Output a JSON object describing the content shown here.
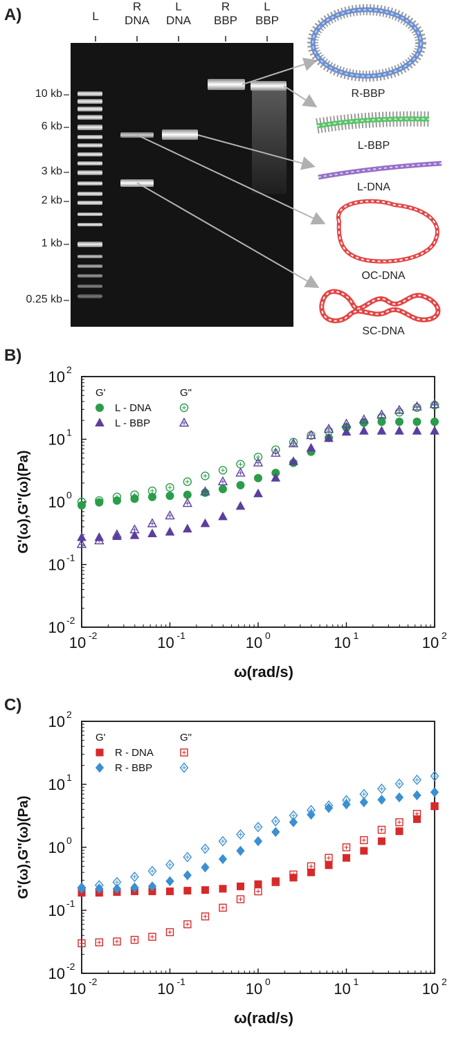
{
  "panels": {
    "a": "A)",
    "b": "B)",
    "c": "C)"
  },
  "gel": {
    "lanes": [
      {
        "top": "",
        "bottom": "L"
      },
      {
        "top": "R",
        "bottom": "DNA"
      },
      {
        "top": "L",
        "bottom": "DNA"
      },
      {
        "top": "R",
        "bottom": "BBP"
      },
      {
        "top": "L",
        "bottom": "BBP"
      }
    ],
    "size_markers": [
      "10 kb",
      "6 kb",
      "3 kb",
      "2 kb",
      "1 kb",
      "0.25 kb"
    ],
    "structures": [
      "R-BBP",
      "L-BBP",
      "L-DNA",
      "OC-DNA",
      "SC-DNA"
    ]
  },
  "chart_data": [
    {
      "type": "scatter",
      "xlabel": "ω(rad/s)",
      "ylabel": "G'(ω),G''(ω)(Pa)",
      "xscale": "log",
      "yscale": "log",
      "xlim": [
        0.01,
        100
      ],
      "ylim": [
        0.01,
        100
      ],
      "xticks": [
        "10",
        "10",
        "10",
        "10",
        "10"
      ],
      "xtick_exps": [
        "-2",
        "-1",
        "0",
        "1",
        "2"
      ],
      "yticks": [
        "10",
        "10",
        "10",
        "10",
        "10"
      ],
      "ytick_exps": [
        "-2",
        "-1",
        "0",
        "1",
        "2"
      ],
      "legend": {
        "col1": "G'",
        "col2": "G\"",
        "placement": "top-left"
      },
      "x": [
        0.01,
        0.0158,
        0.0251,
        0.0398,
        0.0631,
        0.1,
        0.158,
        0.251,
        0.398,
        0.631,
        1,
        1.58,
        2.51,
        3.98,
        6.31,
        10,
        15.8,
        25.1,
        39.8,
        63.1,
        100
      ],
      "series": [
        {
          "name": "L - DNA",
          "modulus": "G'",
          "marker": "circle",
          "filled": true,
          "color": "#2a9d4a",
          "values": [
            0.88,
            0.98,
            1.05,
            1.12,
            1.2,
            1.25,
            1.3,
            1.4,
            1.6,
            1.85,
            2.4,
            2.9,
            4.2,
            6.3,
            10.5,
            15.5,
            18.5,
            19,
            19,
            19,
            19
          ]
        },
        {
          "name": "L - DNA",
          "modulus": "G\"",
          "marker": "circle",
          "filled": false,
          "color": "#2a9d4a",
          "values": [
            1.0,
            1.05,
            1.2,
            1.3,
            1.5,
            1.7,
            2.1,
            2.6,
            3.2,
            4.0,
            5.2,
            6.8,
            9.0,
            11.5,
            13.5,
            15.5,
            18.5,
            22.5,
            27,
            32,
            35
          ]
        },
        {
          "name": "L - BBP",
          "modulus": "G'",
          "marker": "triangle",
          "filled": true,
          "color": "#5b3f9e",
          "values": [
            0.27,
            0.27,
            0.28,
            0.29,
            0.31,
            0.33,
            0.37,
            0.45,
            0.58,
            0.85,
            1.35,
            2.4,
            4.4,
            7.2,
            10.3,
            13,
            13.5,
            13.5,
            13.5,
            13.5,
            13.5
          ]
        },
        {
          "name": "L - BBP",
          "modulus": "G\"",
          "marker": "triangle",
          "filled": false,
          "color": "#5b3f9e",
          "values": [
            0.21,
            0.24,
            0.3,
            0.36,
            0.45,
            0.6,
            0.95,
            1.45,
            2.1,
            2.9,
            4.2,
            6.0,
            8.5,
            11.5,
            14.5,
            17.5,
            20.5,
            24.5,
            29,
            33,
            36
          ]
        }
      ]
    },
    {
      "type": "scatter",
      "xlabel": "ω(rad/s)",
      "ylabel": "G'(ω),G''(ω)(Pa)",
      "xscale": "log",
      "yscale": "log",
      "xlim": [
        0.01,
        100
      ],
      "ylim": [
        0.01,
        100
      ],
      "xticks": [
        "10",
        "10",
        "10",
        "10",
        "10"
      ],
      "xtick_exps": [
        "-2",
        "-1",
        "0",
        "1",
        "2"
      ],
      "yticks": [
        "10",
        "10",
        "10",
        "10",
        "10"
      ],
      "ytick_exps": [
        "-2",
        "-1",
        "0",
        "1",
        "2"
      ],
      "legend": {
        "col1": "G'",
        "col2": "G\"",
        "placement": "top-left"
      },
      "x": [
        0.01,
        0.0158,
        0.0251,
        0.0398,
        0.0631,
        0.1,
        0.158,
        0.251,
        0.398,
        0.631,
        1,
        1.58,
        2.51,
        3.98,
        6.31,
        10,
        15.8,
        25.1,
        39.8,
        63.1,
        100
      ],
      "series": [
        {
          "name": "R - DNA",
          "modulus": "G'",
          "marker": "square",
          "filled": true,
          "color": "#d62a2a",
          "values": [
            0.19,
            0.19,
            0.195,
            0.2,
            0.2,
            0.2,
            0.205,
            0.21,
            0.22,
            0.24,
            0.26,
            0.29,
            0.33,
            0.4,
            0.52,
            0.68,
            0.88,
            1.25,
            1.8,
            2.8,
            4.5
          ]
        },
        {
          "name": "R - DNA",
          "modulus": "G\"",
          "marker": "square",
          "filled": false,
          "color": "#d62a2a",
          "values": [
            0.03,
            0.031,
            0.032,
            0.034,
            0.038,
            0.045,
            0.06,
            0.08,
            0.11,
            0.15,
            0.2,
            0.28,
            0.37,
            0.5,
            0.68,
            1.0,
            1.3,
            1.9,
            2.5,
            3.4,
            4.5
          ]
        },
        {
          "name": "R - BBP",
          "modulus": "G'",
          "marker": "diamond",
          "filled": true,
          "color": "#3c8fd1",
          "values": [
            0.22,
            0.22,
            0.22,
            0.23,
            0.24,
            0.29,
            0.36,
            0.48,
            0.65,
            0.88,
            1.25,
            1.75,
            2.5,
            3.3,
            4.2,
            4.8,
            5.2,
            5.7,
            6.2,
            6.7,
            7.5
          ]
        },
        {
          "name": "R - BBP",
          "modulus": "G\"",
          "marker": "diamond",
          "filled": false,
          "color": "#3c8fd1",
          "values": [
            0.23,
            0.25,
            0.28,
            0.34,
            0.42,
            0.53,
            0.7,
            0.95,
            1.25,
            1.6,
            2.1,
            2.6,
            3.2,
            3.9,
            4.6,
            5.6,
            7.0,
            8.5,
            10.2,
            11.8,
            13.5
          ]
        }
      ]
    }
  ]
}
